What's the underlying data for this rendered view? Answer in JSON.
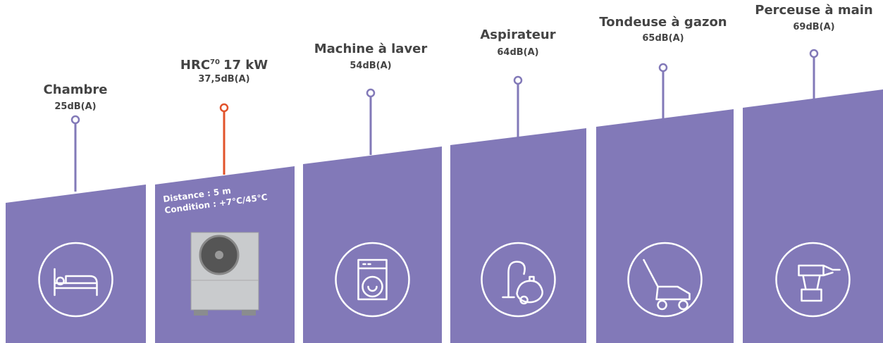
{
  "items": [
    {
      "title": "Chambre",
      "value": "25dB(A)"
    },
    {
      "title": "HRC",
      "title_sup": "70",
      "title_rest": "17 kW",
      "value": "37,5dB(A)",
      "distance": "Distance : 5 m",
      "condition": "Condition : +7°C/45°C"
    },
    {
      "title": "Machine à laver",
      "value": "54dB(A)"
    },
    {
      "title": "Aspirateur",
      "value": "64dB(A)"
    },
    {
      "title": "Tondeuse à gazon",
      "value": "65dB(A)"
    },
    {
      "title": "Perceuse à main",
      "value": "69dB(A)"
    }
  ]
}
